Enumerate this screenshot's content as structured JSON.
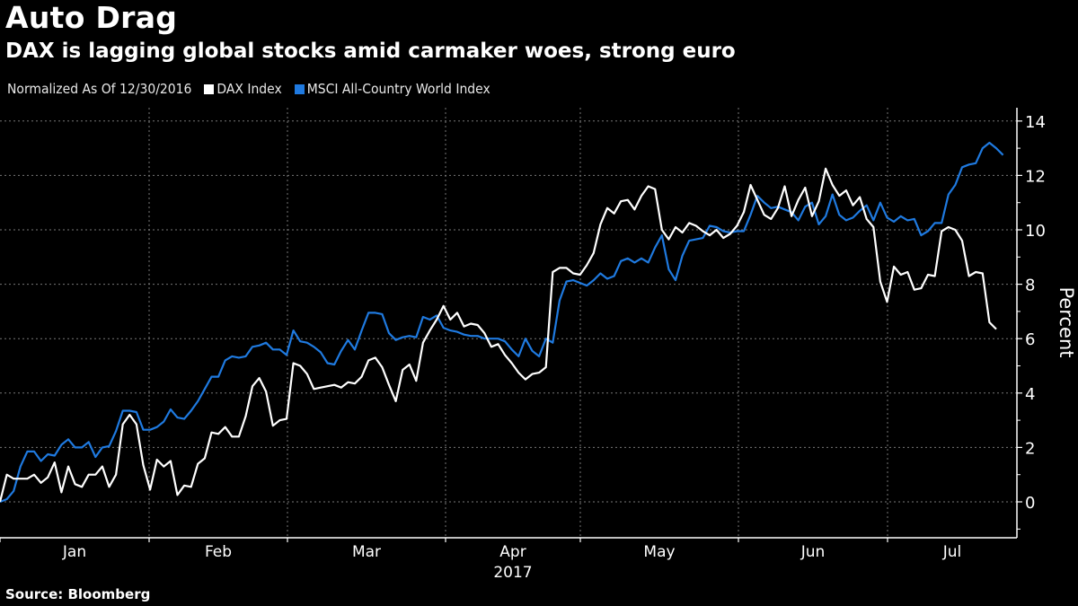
{
  "title": "Auto Drag",
  "subtitle": "DAX is lagging global stocks amid carmaker woes, strong euro",
  "legend": {
    "note": "Normalized As Of 12/30/2016",
    "items": [
      {
        "label": "DAX Index",
        "color": "#ffffff"
      },
      {
        "label": "MSCI All-Country World Index",
        "color": "#1f7ae0"
      }
    ]
  },
  "source": "Source: Bloomberg",
  "chart_data": {
    "type": "line",
    "title": "Auto Drag",
    "subtitle": "DAX is lagging global stocks amid carmaker woes, strong euro",
    "xlabel": "2017",
    "ylabel": "Percent",
    "ylim": [
      -1.3,
      14.8
    ],
    "yticks": [
      0,
      2,
      4,
      6,
      8,
      10,
      12,
      14
    ],
    "months": [
      "Jan",
      "Feb",
      "Mar",
      "Apr",
      "May",
      "Jun",
      "Jul"
    ],
    "year_label": "2017",
    "grid": true,
    "legend_position": "top-left",
    "x_unit": "trading day index since 2016-12-30",
    "series": [
      {
        "name": "DAX Index",
        "color": "#ffffff",
        "values": [
          0,
          1.0,
          0.85,
          0.85,
          0.85,
          1.0,
          0.7,
          0.9,
          1.45,
          0.35,
          1.3,
          0.65,
          0.55,
          1.0,
          1.0,
          1.3,
          0.55,
          1.0,
          2.85,
          3.2,
          2.85,
          1.35,
          0.45,
          1.55,
          1.3,
          1.5,
          0.25,
          0.6,
          0.55,
          1.4,
          1.6,
          2.55,
          2.5,
          2.75,
          2.4,
          2.4,
          3.15,
          4.25,
          4.55,
          4.05,
          2.8,
          3.0,
          3.05,
          5.1,
          5.0,
          4.7,
          4.15,
          4.2,
          4.25,
          4.3,
          4.2,
          4.4,
          4.35,
          4.6,
          5.2,
          5.3,
          4.95,
          4.3,
          3.7,
          4.85,
          5.05,
          4.45,
          5.85,
          6.3,
          6.7,
          7.2,
          6.7,
          6.95,
          6.45,
          6.55,
          6.5,
          6.2,
          5.7,
          5.8,
          5.4,
          5.1,
          4.75,
          4.5,
          4.7,
          4.75,
          4.95,
          8.45,
          8.6,
          8.6,
          8.4,
          8.35,
          8.7,
          9.15,
          10.2,
          10.8,
          10.6,
          11.05,
          11.1,
          10.75,
          11.25,
          11.6,
          11.5,
          10.0,
          9.65,
          10.1,
          9.9,
          10.25,
          10.15,
          9.95,
          9.8,
          10.0,
          9.7,
          9.85,
          10.15,
          10.65,
          11.65,
          11.1,
          10.55,
          10.4,
          10.8,
          11.6,
          10.5,
          11.1,
          11.55,
          10.5,
          11.05,
          12.25,
          11.65,
          11.25,
          11.45,
          10.9,
          11.2,
          10.4,
          10.1,
          8.1,
          7.35,
          8.65,
          8.35,
          8.45,
          7.8,
          7.85,
          8.35,
          8.3,
          9.95,
          10.1,
          10.0,
          9.6,
          8.3,
          8.45,
          8.4,
          6.6,
          6.35
        ]
      },
      {
        "name": "MSCI All-Country World Index",
        "color": "#1f7ae0",
        "values": [
          0,
          0.1,
          0.4,
          1.3,
          1.85,
          1.85,
          1.5,
          1.75,
          1.7,
          2.1,
          2.3,
          2.0,
          2.0,
          2.2,
          1.65,
          2.0,
          2.05,
          2.6,
          3.35,
          3.35,
          3.3,
          2.65,
          2.65,
          2.75,
          2.95,
          3.4,
          3.1,
          3.05,
          3.35,
          3.7,
          4.15,
          4.6,
          4.6,
          5.2,
          5.35,
          5.3,
          5.35,
          5.7,
          5.75,
          5.85,
          5.6,
          5.6,
          5.4,
          6.3,
          5.9,
          5.85,
          5.7,
          5.5,
          5.1,
          5.05,
          5.55,
          5.95,
          5.6,
          6.3,
          6.95,
          6.95,
          6.9,
          6.2,
          5.95,
          6.05,
          6.1,
          6.05,
          6.8,
          6.7,
          6.85,
          6.4,
          6.3,
          6.25,
          6.15,
          6.1,
          6.1,
          6.0,
          6.0,
          6.0,
          5.9,
          5.6,
          5.35,
          6.0,
          5.55,
          5.35,
          6.0,
          5.85,
          7.4,
          8.1,
          8.15,
          8.05,
          7.95,
          8.15,
          8.4,
          8.2,
          8.3,
          8.85,
          8.95,
          8.8,
          8.95,
          8.8,
          9.35,
          9.8,
          8.55,
          8.15,
          9.05,
          9.6,
          9.65,
          9.7,
          10.15,
          10.1,
          9.95,
          9.9,
          9.95,
          9.95,
          10.55,
          11.25,
          11.0,
          10.8,
          10.85,
          10.75,
          10.65,
          10.35,
          10.85,
          11.0,
          10.2,
          10.5,
          11.3,
          10.55,
          10.35,
          10.45,
          10.7,
          10.9,
          10.35,
          11.0,
          10.45,
          10.3,
          10.5,
          10.35,
          10.4,
          9.8,
          9.95,
          10.25,
          10.25,
          11.3,
          11.65,
          12.3,
          12.4,
          12.45,
          13.0,
          13.2,
          13.0,
          12.75
        ]
      }
    ]
  }
}
